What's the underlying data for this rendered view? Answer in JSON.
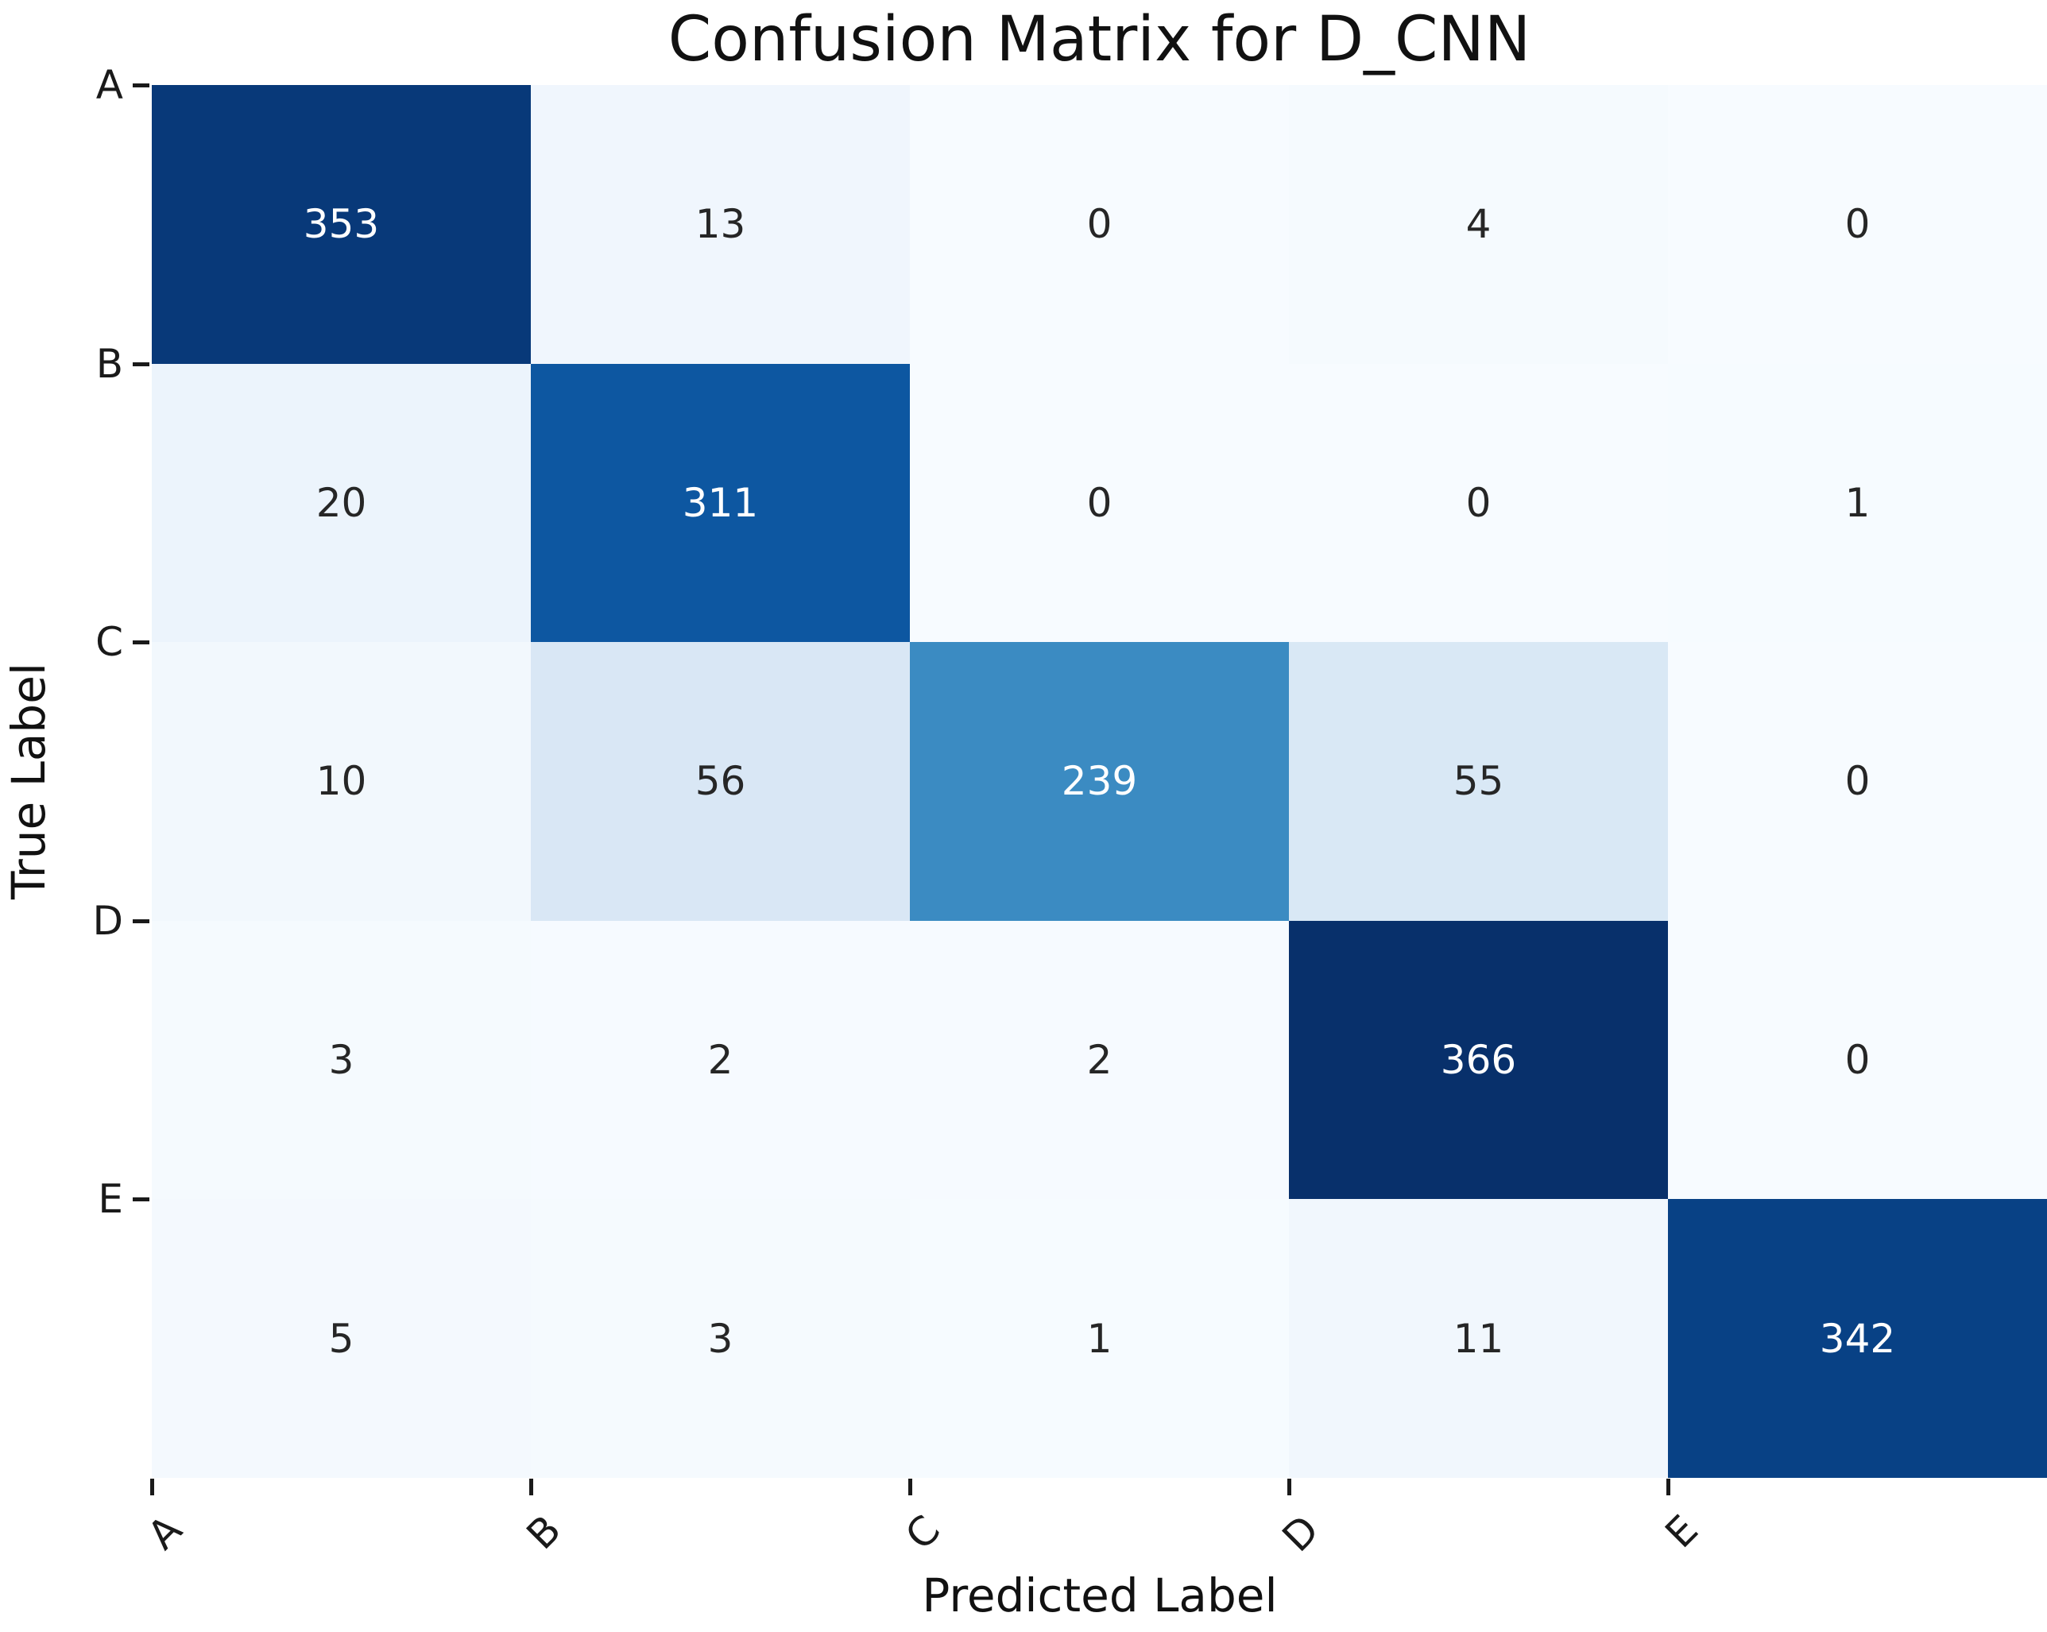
{
  "title": "Confusion Matrix for D_CNN",
  "chart_data": {
    "type": "heatmap",
    "title": "Confusion Matrix for D_CNN",
    "xlabel": "Predicted Label",
    "ylabel": "True Label",
    "x_tick_labels": [
      "A",
      "B",
      "C",
      "D",
      "E"
    ],
    "y_tick_labels": [
      "A",
      "B",
      "C",
      "D",
      "E"
    ],
    "matrix": [
      [
        353,
        13,
        0,
        4,
        0
      ],
      [
        20,
        311,
        0,
        0,
        1
      ],
      [
        10,
        56,
        239,
        55,
        0
      ],
      [
        3,
        2,
        2,
        366,
        0
      ],
      [
        5,
        3,
        1,
        11,
        342
      ]
    ],
    "vmin": 0,
    "vmax": 366,
    "colormap": "Blues",
    "colormap_anchors": {
      "positions": [
        0,
        0.125,
        0.25,
        0.375,
        0.5,
        0.625,
        0.75,
        0.875,
        1.0
      ],
      "colors": [
        "#f7fbff",
        "#deebf7",
        "#c6dbef",
        "#9ecae1",
        "#6baed6",
        "#4292c6",
        "#2171b5",
        "#08519c",
        "#08306b"
      ]
    },
    "annot_text_color_on_light": "#262626",
    "annot_text_color_on_dark": "#ffffff",
    "light_dark_threshold": 0.5,
    "tick_color": "#1a1a1a",
    "background_color": "#ffffff",
    "grid": false,
    "legend": "none",
    "colorbar": false,
    "x_tick_label_rotation_deg": 45
  }
}
